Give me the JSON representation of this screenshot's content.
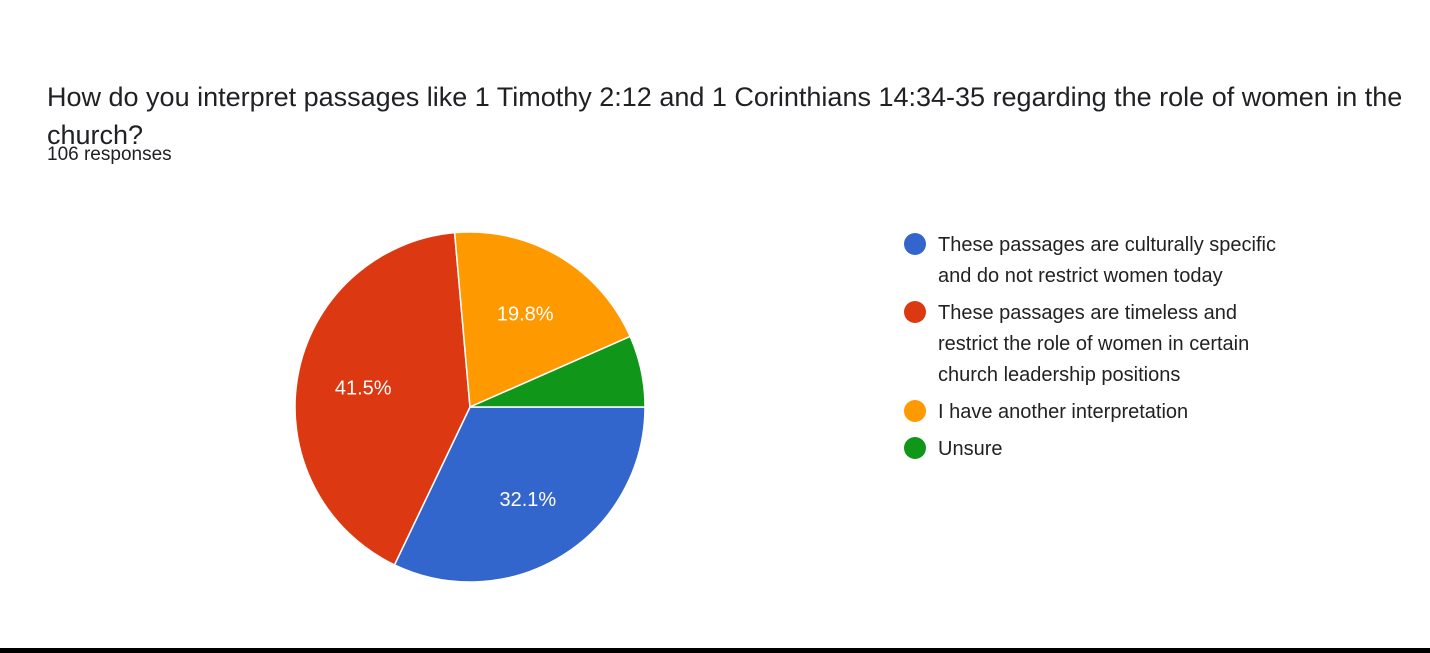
{
  "question": {
    "title": "How do you interpret passages like 1 Timothy 2:12 and 1 Corinthians 14:34-35 regarding the role of women in the church?",
    "responses_label": "106 responses"
  },
  "chart_data": {
    "type": "pie",
    "title": "How do you interpret passages like 1 Timothy 2:12 and 1 Corinthians 14:34-35 regarding the role of women in the church?",
    "total_responses": 106,
    "legend_position": "right",
    "categories": [
      "These passages are culturally specific and do not restrict women today",
      "These passages are timeless and restrict the role of women in certain church leadership positions",
      "I have another interpretation",
      "Unsure"
    ],
    "values": [
      32.1,
      41.5,
      19.8,
      6.6
    ],
    "labels": [
      "32.1%",
      "41.5%",
      "19.8%",
      ""
    ],
    "colors": [
      "#3366cc",
      "#dc3912",
      "#ff9900",
      "#109618"
    ]
  },
  "legend": [
    {
      "lines": [
        "These passages are culturally specific",
        "and do not restrict women today"
      ],
      "color": "#3366cc"
    },
    {
      "lines": [
        "These passages are timeless and",
        "restrict the role of women in certain",
        "church leadership positions"
      ],
      "color": "#dc3912"
    },
    {
      "lines": [
        "I have another interpretation"
      ],
      "color": "#ff9900"
    },
    {
      "lines": [
        "Unsure"
      ],
      "color": "#109618"
    }
  ]
}
